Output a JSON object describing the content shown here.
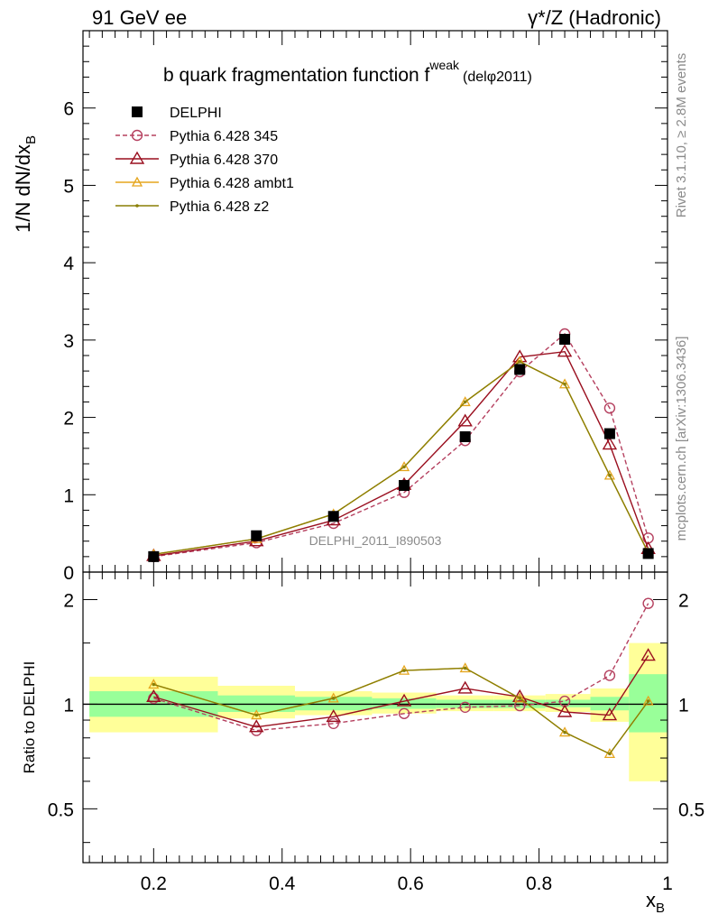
{
  "header": {
    "left": "91 GeV ee",
    "right": "γ*/Z (Hadronic)"
  },
  "title": {
    "main": "b quark fragmentation function f",
    "sup": "weak",
    "ref": "(delφ2011)"
  },
  "side": {
    "rivet": "Rivet 3.1.10, ≥ 2.8M events",
    "mcplots": "mcplots.cern.ch [arXiv:1306.3436]"
  },
  "watermark": "DELPHI_2011_I890503",
  "axes": {
    "ylabel_main": "1/N dN/dx",
    "ylabel_main_sub": "B",
    "ylabel_ratio": "Ratio to DELPHI",
    "xlabel": "x",
    "xlabel_sub": "B"
  },
  "chart_data": [
    {
      "type": "line",
      "title": "b quark fragmentation function f weak (delφ2011)",
      "xlabel": "x_B",
      "ylabel": "1/N dN/dx_B",
      "xlim": [
        0.09,
        1.0
      ],
      "ylim": [
        0,
        7
      ],
      "yticks": [
        0,
        1,
        2,
        3,
        4,
        5,
        6
      ],
      "xticks": [
        0.2,
        0.4,
        0.6,
        0.8,
        1
      ],
      "legend": "top-left",
      "grid": false,
      "series": [
        {
          "name": "DELPHI",
          "style": "data",
          "color": "#000000",
          "x": [
            0.2,
            0.36,
            0.48,
            0.59,
            0.685,
            0.77,
            0.84,
            0.91,
            0.97
          ],
          "y": [
            0.2,
            0.47,
            0.72,
            1.12,
            1.75,
            2.62,
            3.01,
            1.79,
            0.24
          ]
        },
        {
          "name": "Pythia 6.428 345",
          "style": "dashed-circle",
          "color": "#b5405f",
          "x": [
            0.2,
            0.36,
            0.48,
            0.59,
            0.685,
            0.77,
            0.84,
            0.91,
            0.97
          ],
          "y": [
            0.2,
            0.38,
            0.63,
            1.03,
            1.7,
            2.59,
            3.08,
            2.12,
            0.44
          ]
        },
        {
          "name": "Pythia 6.428 370",
          "style": "solid-triangle",
          "color": "#9a0f1f",
          "x": [
            0.2,
            0.36,
            0.48,
            0.59,
            0.685,
            0.77,
            0.84,
            0.91,
            0.97
          ],
          "y": [
            0.21,
            0.4,
            0.67,
            1.13,
            1.95,
            2.78,
            2.85,
            1.65,
            0.3
          ]
        },
        {
          "name": "Pythia 6.428 ambt1",
          "style": "solid-smalltriangle",
          "color": "#e5a51d",
          "x": [
            0.2,
            0.36,
            0.48,
            0.59,
            0.685,
            0.77,
            0.84,
            0.91,
            0.97
          ],
          "y": [
            0.23,
            0.43,
            0.75,
            1.36,
            2.2,
            2.72,
            2.43,
            1.25,
            0.25
          ]
        },
        {
          "name": "Pythia 6.428 z2",
          "style": "solid-dot",
          "color": "#8a7f05",
          "x": [
            0.2,
            0.36,
            0.48,
            0.59,
            0.685,
            0.77,
            0.84,
            0.91,
            0.97
          ],
          "y": [
            0.23,
            0.43,
            0.75,
            1.36,
            2.2,
            2.72,
            2.43,
            1.25,
            0.25
          ]
        }
      ]
    },
    {
      "type": "line",
      "xlabel": "x_B",
      "ylabel": "Ratio to DELPHI",
      "xlim": [
        0.09,
        1.0
      ],
      "ylim": [
        0.35,
        2.4
      ],
      "yscale": "log",
      "yticks": [
        0.5,
        1,
        2
      ],
      "xticks": [
        0.2,
        0.4,
        0.6,
        0.8,
        1
      ],
      "reference_line": 1,
      "bands": [
        {
          "xlo": 0.1,
          "xhi": 0.3,
          "inner": [
            0.92,
            1.09
          ],
          "outer": [
            0.83,
            1.2
          ]
        },
        {
          "xlo": 0.3,
          "xhi": 0.42,
          "inner": [
            0.95,
            1.06
          ],
          "outer": [
            0.91,
            1.13
          ]
        },
        {
          "xlo": 0.42,
          "xhi": 0.54,
          "inner": [
            0.96,
            1.05
          ],
          "outer": [
            0.93,
            1.09
          ]
        },
        {
          "xlo": 0.54,
          "xhi": 0.64,
          "inner": [
            0.97,
            1.04
          ],
          "outer": [
            0.94,
            1.08
          ]
        },
        {
          "xlo": 0.64,
          "xhi": 0.73,
          "inner": [
            0.975,
            1.03
          ],
          "outer": [
            0.955,
            1.06
          ]
        },
        {
          "xlo": 0.73,
          "xhi": 0.81,
          "inner": [
            0.975,
            1.03
          ],
          "outer": [
            0.955,
            1.06
          ]
        },
        {
          "xlo": 0.81,
          "xhi": 0.88,
          "inner": [
            0.98,
            1.03
          ],
          "outer": [
            0.95,
            1.07
          ]
        },
        {
          "xlo": 0.88,
          "xhi": 0.94,
          "inner": [
            0.96,
            1.05
          ],
          "outer": [
            0.89,
            1.11
          ]
        },
        {
          "xlo": 0.94,
          "xhi": 1.0,
          "inner": [
            0.83,
            1.22
          ],
          "outer": [
            0.6,
            1.5
          ]
        }
      ],
      "series": [
        {
          "name": "Pythia 6.428 345",
          "color": "#b5405f",
          "x": [
            0.2,
            0.36,
            0.48,
            0.59,
            0.685,
            0.77,
            0.84,
            0.91,
            0.97
          ],
          "y": [
            1.04,
            0.84,
            0.88,
            0.94,
            0.98,
            0.99,
            1.02,
            1.21,
            1.95
          ]
        },
        {
          "name": "Pythia 6.428 370",
          "color": "#9a0f1f",
          "x": [
            0.2,
            0.36,
            0.48,
            0.59,
            0.685,
            0.77,
            0.84,
            0.91,
            0.97
          ],
          "y": [
            1.05,
            0.86,
            0.92,
            1.02,
            1.11,
            1.05,
            0.95,
            0.93,
            1.38
          ]
        },
        {
          "name": "Pythia 6.428 ambt1",
          "color": "#e5a51d",
          "x": [
            0.2,
            0.36,
            0.48,
            0.59,
            0.685,
            0.77,
            0.84,
            0.91,
            0.97
          ],
          "y": [
            1.14,
            0.93,
            1.04,
            1.25,
            1.27,
            1.04,
            0.83,
            0.72,
            1.02
          ]
        },
        {
          "name": "Pythia 6.428 z2",
          "color": "#8a7f05",
          "x": [
            0.2,
            0.36,
            0.48,
            0.59,
            0.685,
            0.77,
            0.84,
            0.91,
            0.97
          ],
          "y": [
            1.14,
            0.93,
            1.04,
            1.25,
            1.27,
            1.04,
            0.83,
            0.72,
            1.02
          ]
        }
      ]
    }
  ]
}
